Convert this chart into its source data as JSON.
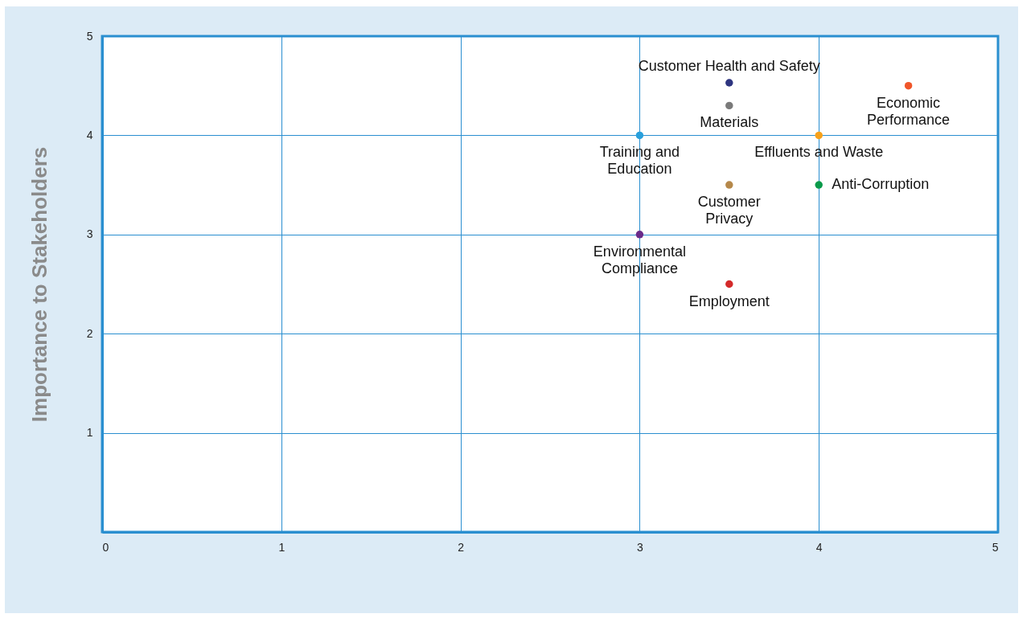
{
  "chart_data": {
    "type": "scatter",
    "ylabel": "Importance to Stakeholders",
    "xlim": [
      0,
      5
    ],
    "ylim": [
      0,
      5
    ],
    "xticks": [
      0,
      1,
      2,
      3,
      4,
      5
    ],
    "yticks": [
      1,
      2,
      3,
      4,
      5
    ],
    "grid": true,
    "series": [
      {
        "name": "Customer Health and Safety",
        "color": "#2e3580",
        "x": [
          3.5
        ],
        "values": [
          4.53
        ]
      },
      {
        "name": "Materials",
        "color": "#7a7a7a",
        "x": [
          3.5
        ],
        "values": [
          4.3
        ]
      },
      {
        "name": "Economic Performance",
        "color": "#f0562a",
        "x": [
          4.5
        ],
        "values": [
          4.5
        ]
      },
      {
        "name": "Training and Education",
        "color": "#29a0dc",
        "x": [
          3
        ],
        "values": [
          4
        ]
      },
      {
        "name": "Effluents and Waste",
        "color": "#f7a11a",
        "x": [
          4
        ],
        "values": [
          4
        ]
      },
      {
        "name": "Customer Privacy",
        "color": "#b5884a",
        "x": [
          3.5
        ],
        "values": [
          3.5
        ]
      },
      {
        "name": "Anti-Corruption",
        "color": "#0a9a4a",
        "x": [
          4
        ],
        "values": [
          3.5
        ]
      },
      {
        "name": "Environmental Compliance",
        "color": "#6a2b8a",
        "x": [
          3
        ],
        "values": [
          3
        ]
      },
      {
        "name": "Employment",
        "color": "#d42a2a",
        "x": [
          3.5
        ],
        "values": [
          2.5
        ]
      }
    ]
  }
}
